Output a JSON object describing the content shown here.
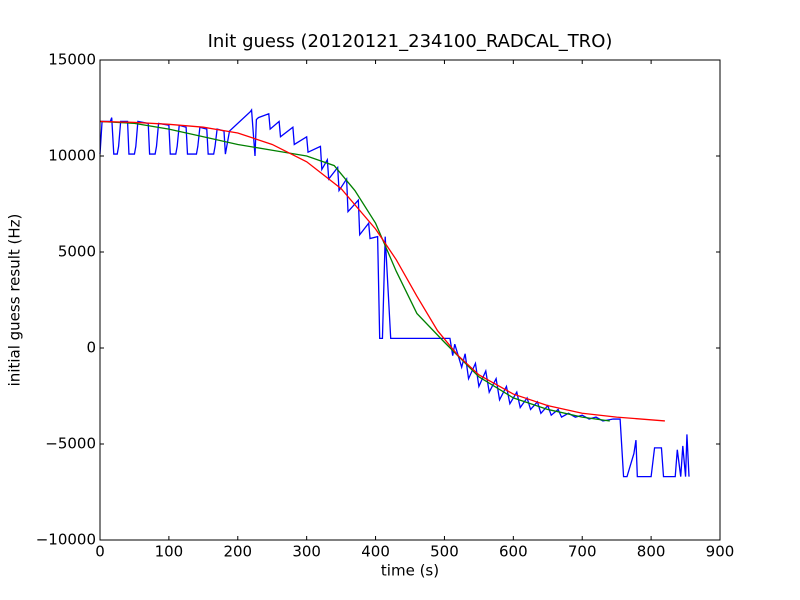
{
  "chart_data": {
    "type": "line",
    "title": "Init guess (20120121_234100_RADCAL_TRO)",
    "x_label": "time (s)",
    "y_label": "initial guess result (Hz)",
    "xlim": [
      0,
      900
    ],
    "ylim": [
      -10000,
      15000
    ],
    "xticks": [
      0,
      100,
      200,
      300,
      400,
      500,
      600,
      700,
      800,
      900
    ],
    "yticks": [
      {
        "value": -10000,
        "label": "−10000"
      },
      {
        "value": -5000,
        "label": "−5000"
      },
      0,
      5000,
      10000,
      15000
    ],
    "grid": false,
    "series": [
      {
        "color": "#0000ff",
        "x": [
          0,
          3,
          15,
          17,
          20,
          25,
          27,
          30,
          40,
          42,
          50,
          52,
          55,
          70,
          72,
          80,
          82,
          85,
          100,
          102,
          110,
          112,
          115,
          125,
          127,
          140,
          142,
          145,
          155,
          157,
          165,
          167,
          170,
          180,
          182,
          188,
          218,
          220,
          225,
          227,
          230,
          245,
          247,
          260,
          262,
          280,
          282,
          300,
          302,
          320,
          322,
          330,
          332,
          345,
          347,
          358,
          360,
          375,
          377,
          390,
          392,
          403,
          406,
          410,
          414,
          422,
          428,
          431,
          434,
          470,
          508,
          512,
          515,
          525,
          530,
          535,
          545,
          550,
          560,
          565,
          575,
          580,
          590,
          595,
          605,
          610,
          620,
          625,
          635,
          640,
          650,
          655,
          665,
          670,
          680,
          690,
          700,
          710,
          720,
          730,
          745,
          755,
          760,
          765,
          775,
          778,
          780,
          800,
          805,
          815,
          818,
          820,
          835,
          838,
          843,
          846,
          850,
          852,
          855
        ],
        "values": [
          10100,
          11800,
          11800,
          12000,
          10100,
          10100,
          10500,
          11800,
          11800,
          10100,
          10100,
          10500,
          11800,
          11700,
          10100,
          10100,
          10500,
          11700,
          11600,
          10100,
          10100,
          10500,
          11600,
          11500,
          10100,
          10100,
          10500,
          11500,
          11400,
          10100,
          10100,
          10500,
          11400,
          11300,
          10100,
          11300,
          12300,
          12400,
          10000,
          11900,
          12000,
          12200,
          11400,
          11800,
          11000,
          11500,
          10600,
          11000,
          10200,
          10500,
          9300,
          9800,
          8800,
          9400,
          8200,
          8800,
          7100,
          7700,
          5900,
          6500,
          5700,
          5800,
          500,
          500,
          5800,
          500,
          500,
          500,
          500,
          500,
          500,
          -400,
          200,
          -1000,
          -300,
          -1600,
          -800,
          -2000,
          -1200,
          -2300,
          -1600,
          -2700,
          -2000,
          -2900,
          -2300,
          -3100,
          -2600,
          -3200,
          -2800,
          -3400,
          -3000,
          -3500,
          -3200,
          -3600,
          -3400,
          -3600,
          -3500,
          -3700,
          -3600,
          -3800,
          -3700,
          -3700,
          -6700,
          -6700,
          -5500,
          -4800,
          -6700,
          -6700,
          -5200,
          -5200,
          -6700,
          -6700,
          -6700,
          -5300,
          -6700,
          -5100,
          -6700,
          -4500,
          -6700
        ],
        "noop": null
      },
      {
        "color": "#008000",
        "x": [
          0,
          50,
          100,
          150,
          200,
          250,
          300,
          340,
          370,
          400,
          430,
          460,
          500,
          550,
          600,
          650,
          700,
          740
        ],
        "values": [
          11800,
          11700,
          11400,
          11000,
          10600,
          10300,
          10000,
          9500,
          8200,
          6500,
          4000,
          1800,
          300,
          -1500,
          -2600,
          -3200,
          -3600,
          -3800
        ]
      },
      {
        "color": "#ff0000",
        "x": [
          0,
          50,
          100,
          150,
          200,
          250,
          300,
          350,
          400,
          430,
          460,
          490,
          520,
          550,
          600,
          650,
          700,
          750,
          820
        ],
        "values": [
          11800,
          11750,
          11650,
          11500,
          11200,
          10600,
          9700,
          8300,
          6200,
          4600,
          2700,
          900,
          -400,
          -1400,
          -2400,
          -3000,
          -3400,
          -3600,
          -3800
        ]
      }
    ]
  }
}
